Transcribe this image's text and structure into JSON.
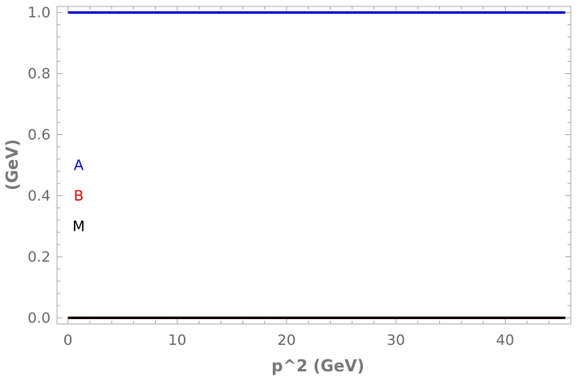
{
  "chart_data": {
    "type": "line",
    "xlabel": "p^2 (GeV)",
    "ylabel": "(GeV)",
    "xlim": [
      -1,
      46
    ],
    "ylim": [
      -0.02,
      1.02
    ],
    "x_ticks": [
      "0",
      "10",
      "20",
      "30",
      "40"
    ],
    "y_ticks": [
      "0.0",
      "0.2",
      "0.4",
      "0.6",
      "0.8",
      "1.0"
    ],
    "x_tick_values": [
      0,
      10,
      20,
      30,
      40
    ],
    "y_tick_values": [
      0.0,
      0.2,
      0.4,
      0.6,
      0.8,
      1.0
    ],
    "grid": false,
    "legend_position": "left",
    "series": [
      {
        "name": "A",
        "color": "#0000cc",
        "x": [
          0,
          45.5
        ],
        "y": [
          1.0,
          1.0
        ]
      },
      {
        "name": "B",
        "color": "#dd0000",
        "x": [
          0,
          45.5
        ],
        "y": [
          0.0,
          0.0
        ]
      },
      {
        "name": "M",
        "color": "#000000",
        "x": [
          0,
          45.5
        ],
        "y": [
          0.0,
          0.0
        ]
      }
    ],
    "legend": [
      {
        "label": "A",
        "color": "#0000cc",
        "y": 0.5
      },
      {
        "label": "B",
        "color": "#dd0000",
        "y": 0.4
      },
      {
        "label": "M",
        "color": "#000000",
        "y": 0.3
      }
    ]
  }
}
